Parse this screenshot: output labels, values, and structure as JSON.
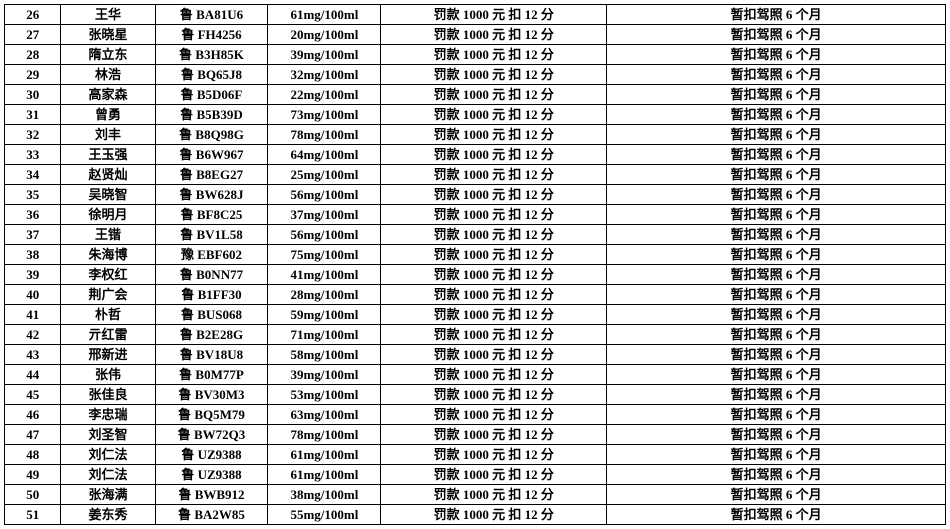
{
  "table": {
    "columns": [
      {
        "key": "idx",
        "cls": "col-idx"
      },
      {
        "key": "name",
        "cls": "col-name"
      },
      {
        "key": "plate",
        "cls": "col-plate"
      },
      {
        "key": "val",
        "cls": "col-val"
      },
      {
        "key": "penalty",
        "cls": "col-penalty"
      },
      {
        "key": "action",
        "cls": "col-action"
      }
    ],
    "penalty_text": "罚款 1000 元 扣 12 分",
    "action_text": "暂扣驾照 6 个月",
    "rows": [
      {
        "idx": "26",
        "name": "王华",
        "plate": "鲁 BA81U6",
        "val": "61mg/100ml"
      },
      {
        "idx": "27",
        "name": "张晓星",
        "plate": "鲁 FH4256",
        "val": "20mg/100ml"
      },
      {
        "idx": "28",
        "name": "隋立东",
        "plate": "鲁 B3H85K",
        "val": "39mg/100ml"
      },
      {
        "idx": "29",
        "name": "林浩",
        "plate": "鲁 BQ65J8",
        "val": "32mg/100ml"
      },
      {
        "idx": "30",
        "name": "高家森",
        "plate": "鲁 B5D06F",
        "val": "22mg/100ml"
      },
      {
        "idx": "31",
        "name": "曾勇",
        "plate": "鲁 B5B39D",
        "val": "73mg/100ml"
      },
      {
        "idx": "32",
        "name": "刘丰",
        "plate": "鲁 B8Q98G",
        "val": "78mg/100ml"
      },
      {
        "idx": "33",
        "name": "王玉强",
        "plate": "鲁 B6W967",
        "val": "64mg/100ml"
      },
      {
        "idx": "34",
        "name": "赵贤灿",
        "plate": "鲁 B8EG27",
        "val": "25mg/100ml"
      },
      {
        "idx": "35",
        "name": "吴晓智",
        "plate": "鲁 BW628J",
        "val": "56mg/100ml"
      },
      {
        "idx": "36",
        "name": "徐明月",
        "plate": "鲁 BF8C25",
        "val": "37mg/100ml"
      },
      {
        "idx": "37",
        "name": "王锴",
        "plate": "鲁 BV1L58",
        "val": "56mg/100ml"
      },
      {
        "idx": "38",
        "name": "朱海博",
        "plate": "豫 EBF602",
        "val": "75mg/100ml"
      },
      {
        "idx": "39",
        "name": "李权红",
        "plate": "鲁 B0NN77",
        "val": "41mg/100ml"
      },
      {
        "idx": "40",
        "name": "荆广会",
        "plate": "鲁 B1FF30",
        "val": "28mg/100ml"
      },
      {
        "idx": "41",
        "name": "朴哲",
        "plate": "鲁 BUS068",
        "val": "59mg/100ml"
      },
      {
        "idx": "42",
        "name": "亓红雷",
        "plate": "鲁 B2E28G",
        "val": "71mg/100ml"
      },
      {
        "idx": "43",
        "name": "邢新进",
        "plate": "鲁 BV18U8",
        "val": "58mg/100ml"
      },
      {
        "idx": "44",
        "name": "张伟",
        "plate": "鲁 B0M77P",
        "val": "39mg/100ml"
      },
      {
        "idx": "45",
        "name": "张佳良",
        "plate": "鲁 BV30M3",
        "val": "53mg/100ml"
      },
      {
        "idx": "46",
        "name": "李忠瑞",
        "plate": "鲁 BQ5M79",
        "val": "63mg/100ml"
      },
      {
        "idx": "47",
        "name": "刘圣智",
        "plate": "鲁 BW72Q3",
        "val": "78mg/100ml"
      },
      {
        "idx": "48",
        "name": "刘仁法",
        "plate": "鲁 UZ9388",
        "val": "61mg/100ml"
      },
      {
        "idx": "49",
        "name": "刘仁法",
        "plate": "鲁 UZ9388",
        "val": "61mg/100ml"
      },
      {
        "idx": "50",
        "name": "张海满",
        "plate": "鲁 BWB912",
        "val": "38mg/100ml"
      },
      {
        "idx": "51",
        "name": "姜东秀",
        "plate": "鲁 BA2W85",
        "val": "55mg/100ml"
      }
    ]
  }
}
